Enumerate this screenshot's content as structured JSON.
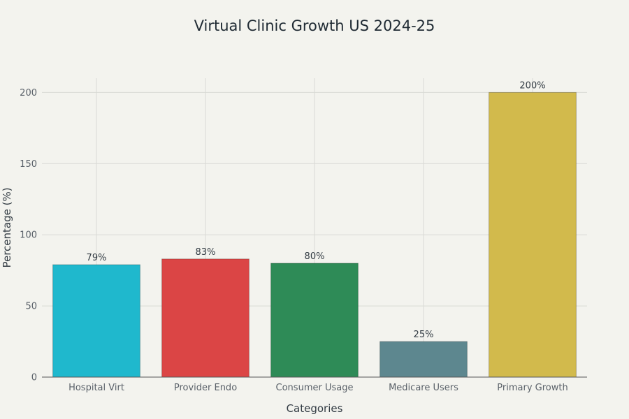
{
  "chart_data": {
    "type": "bar",
    "title": "Virtual Clinic Growth US 2024-25",
    "xlabel": "Categories",
    "ylabel": "Percentage (%)",
    "categories": [
      "Hospital Virt",
      "Provider Endo",
      "Consumer Usage",
      "Medicare Users",
      "Primary Growth"
    ],
    "values": [
      79,
      83,
      80,
      25,
      200
    ],
    "data_labels": [
      "79%",
      "83%",
      "80%",
      "25%",
      "200%"
    ],
    "colors": [
      "#1fb8cd",
      "#db4545",
      "#2e8b57",
      "#5d878f",
      "#d2ba4c"
    ],
    "ylim": [
      0,
      210
    ],
    "yticks": [
      0,
      50,
      100,
      150,
      200
    ],
    "grid": true,
    "legend": "none"
  }
}
